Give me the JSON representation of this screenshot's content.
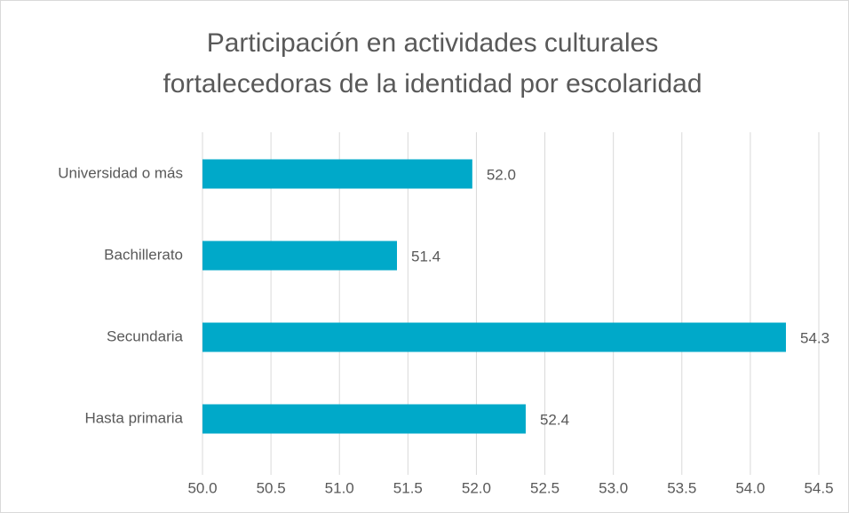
{
  "chart_data": {
    "type": "bar",
    "orientation": "horizontal",
    "title": [
      "Participación en actividades culturales",
      "fortalecedoras de la identidad por escolaridad"
    ],
    "categories": [
      "Universidad o más",
      "Bachillerato",
      "Secundaria",
      "Hasta primaria"
    ],
    "values": [
      51.97,
      51.42,
      54.26,
      52.36
    ],
    "value_labels": [
      "52.0",
      "51.4",
      "54.3",
      "52.4"
    ],
    "color": "#00a9c9",
    "xlim": [
      50,
      54.5
    ],
    "xticks": [
      {
        "value": 50,
        "label": "50.0"
      },
      50.5,
      {
        "value": 51,
        "label": "51.0"
      },
      51.5,
      {
        "value": 52,
        "label": "52.0"
      },
      52.5,
      {
        "value": 53,
        "label": "53.0"
      },
      53.5,
      {
        "value": 54,
        "label": "54.0"
      },
      54.5
    ],
    "grid": true
  }
}
